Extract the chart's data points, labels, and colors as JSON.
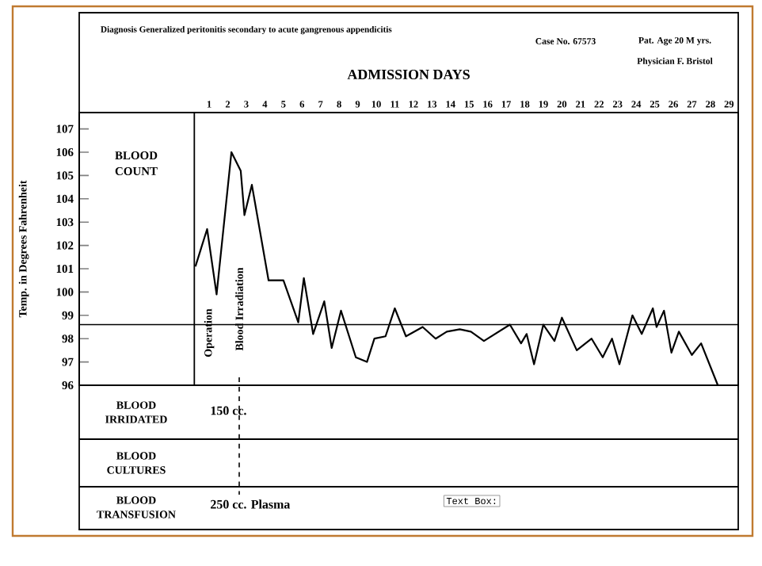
{
  "chart_data": {
    "type": "line",
    "title": "Diagnosis Generalized peritonitis secondary to acute gangrenous appendicitis",
    "xlabel": "ADMISSION DAYS",
    "ylabel": "Temp. in Degrees Fahrenheit",
    "x": [
      0.26,
      0.89,
      1.4,
      2.2,
      2.7,
      2.9,
      3.3,
      4.2,
      5.0,
      5.8,
      6.1,
      6.6,
      7.2,
      7.6,
      8.1,
      8.9,
      9.5,
      9.9,
      10.5,
      11.0,
      11.6,
      12.5,
      13.2,
      13.8,
      14.5,
      15.1,
      15.8,
      17.2,
      17.8,
      18.1,
      18.5,
      19.0,
      19.6,
      20.0,
      20.8,
      21.6,
      22.2,
      22.7,
      23.1,
      23.8,
      24.3,
      24.9,
      25.1,
      25.5,
      25.9,
      26.3,
      27.0,
      27.5,
      28.4
    ],
    "values": [
      101.1,
      102.7,
      99.9,
      106.0,
      105.2,
      103.3,
      104.6,
      100.5,
      100.5,
      98.7,
      100.6,
      98.2,
      99.6,
      97.6,
      99.2,
      97.2,
      97.0,
      98.0,
      98.1,
      99.3,
      98.1,
      98.5,
      98.0,
      98.3,
      98.4,
      98.3,
      97.9,
      98.6,
      97.8,
      98.2,
      96.9,
      98.6,
      97.9,
      98.9,
      97.5,
      98.0,
      97.2,
      98.0,
      96.9,
      99.0,
      98.2,
      99.3,
      98.5,
      99.2,
      97.4,
      98.3,
      97.3,
      97.8,
      96.0
    ],
    "color": "#000000",
    "xlim": [
      -6,
      29.5
    ],
    "ylim": [
      96,
      107.7
    ],
    "xticks": [
      1,
      2,
      3,
      4,
      5,
      6,
      7,
      8,
      9,
      10,
      11,
      12,
      13,
      14,
      15,
      16,
      17,
      18,
      19,
      20,
      21,
      22,
      23,
      24,
      25,
      26,
      27,
      28,
      29
    ],
    "yticks": [
      96,
      97,
      98,
      99,
      100,
      101,
      102,
      103,
      104,
      105,
      106,
      107
    ],
    "ref_lines": [
      {
        "axis": "y",
        "value": 98.6
      },
      {
        "axis": "x",
        "value": 0.2
      }
    ],
    "annotations": [
      "Case No. 67573",
      "Pat. Age 20 M yrs.",
      "Physician F. Bristol",
      "BLOOD COUNT",
      "Operation",
      "Blood Irradiation",
      "BLOOD IRRIDATED",
      "150 cc.",
      "BLOOD CULTURES",
      "BLOOD TRANSFUSION",
      "250 cc. Plasma",
      "Text Box:"
    ]
  }
}
